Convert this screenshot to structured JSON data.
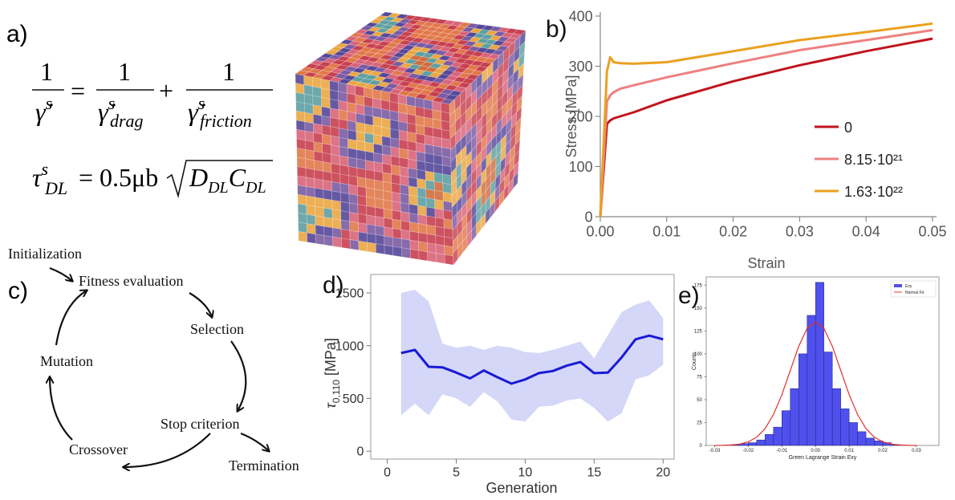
{
  "panels": {
    "a": "a)",
    "c": "c)"
  },
  "equation_1": {
    "fractions": [
      {
        "num": "1",
        "den": "γ̇",
        "sup": "s"
      },
      {
        "num": "1",
        "den": "γ̇",
        "sup": "s",
        "sub": "drag"
      },
      {
        "num": "1",
        "den": "γ̇",
        "sup": "s",
        "sub": "friction"
      }
    ],
    "operators": [
      "=",
      "+"
    ]
  },
  "equation_2": {
    "symbol": "τ",
    "sup": "s",
    "sub": "DL",
    "rhs": "= 0.5μb",
    "radicand": [
      [
        "D",
        "DL"
      ],
      [
        "C",
        "DL"
      ]
    ]
  },
  "cycle": {
    "steps": [
      "Initialization",
      "Fitness evaluation",
      "Selection",
      "Stop criterion",
      "Termination",
      "Crossover",
      "Mutation"
    ]
  },
  "chart_data": [
    {
      "type": "line",
      "label": "b)",
      "xlabel": "Strain",
      "ylabel": "Stress [MPa]",
      "x": [
        0,
        0.001,
        0.0015,
        0.002,
        0.003,
        0.005,
        0.01,
        0.02,
        0.03,
        0.04,
        0.05
      ],
      "series": [
        {
          "name": "0",
          "color": "#c0141e",
          "values": [
            0,
            185,
            192,
            196,
            200,
            208,
            232,
            270,
            302,
            330,
            355
          ]
        },
        {
          "name": "8.15·10²¹",
          "color": "#ee8080",
          "values": [
            0,
            230,
            242,
            248,
            255,
            262,
            278,
            306,
            332,
            352,
            372
          ]
        },
        {
          "name": "1.63·10²²",
          "color": "#eba020",
          "values": [
            0,
            290,
            318,
            308,
            306,
            305,
            308,
            330,
            352,
            368,
            385
          ]
        }
      ],
      "xlim": [
        0,
        0.05
      ],
      "ylim": [
        0,
        400
      ],
      "xticks": [
        {
          "value": 0,
          "label": "0.00"
        },
        0.01,
        0.02,
        0.03,
        0.04,
        0.05
      ],
      "yticks": [
        0,
        100,
        200,
        300,
        400
      ],
      "legend": "right"
    },
    {
      "type": "line",
      "label": "d)",
      "xlabel": "Generation",
      "ylabel": [
        "τ",
        "0,110",
        " [MPa]"
      ],
      "x": [
        1,
        2,
        3,
        4,
        5,
        6,
        7,
        8,
        9,
        10,
        11,
        12,
        13,
        14,
        15,
        16,
        17,
        18,
        19,
        20
      ],
      "series": [
        {
          "color": "#1a1ad6",
          "band_color": "#cdd0f6",
          "values": [
            930,
            960,
            800,
            795,
            745,
            690,
            765,
            700,
            640,
            680,
            740,
            760,
            810,
            845,
            740,
            745,
            890,
            1060,
            1095,
            1060
          ],
          "lower": [
            340,
            450,
            340,
            540,
            500,
            420,
            560,
            470,
            300,
            280,
            420,
            430,
            480,
            500,
            410,
            280,
            360,
            680,
            720,
            820
          ],
          "upper": [
            1500,
            1530,
            1420,
            1020,
            980,
            1000,
            960,
            1000,
            980,
            940,
            930,
            960,
            1000,
            1040,
            880,
            1100,
            1320,
            1390,
            1430,
            1260
          ]
        }
      ],
      "xlim": [
        -1.2,
        20.8
      ],
      "ylim": [
        -75,
        1675
      ],
      "xticks": [
        0,
        5,
        10,
        15,
        20
      ],
      "yticks": [
        0,
        500,
        1000,
        1500
      ]
    },
    {
      "type": "histogram",
      "label": "e)",
      "xlabel": "Green Lagrange Strain Exy",
      "ylabel": "Counts",
      "name": "Exy",
      "color": "#5050ee",
      "bins": [
        -0.025,
        -0.0225,
        -0.02,
        -0.0175,
        -0.015,
        -0.0125,
        -0.01,
        -0.0075,
        -0.005,
        -0.0025,
        0,
        0.0025,
        0.005,
        0.0075,
        0.01,
        0.0125,
        0.015,
        0.0175,
        0.02,
        0.0225,
        0.025
      ],
      "counts": [
        1,
        2,
        3,
        6,
        12,
        20,
        38,
        62,
        100,
        142,
        178,
        102,
        62,
        40,
        25,
        15,
        8,
        5,
        3,
        1
      ],
      "fit": {
        "name": "Normal Fit",
        "color": "#e03030",
        "x": [
          -0.03,
          -0.0275,
          -0.025,
          -0.0225,
          -0.02,
          -0.0175,
          -0.015,
          -0.0125,
          -0.01,
          -0.0075,
          -0.005,
          -0.0025,
          0,
          0.0025,
          0.005,
          0.0075,
          0.01,
          0.0125,
          0.015,
          0.0175,
          0.02,
          0.0225,
          0.025,
          0.0275,
          0.03
        ],
        "values": [
          0,
          0.1,
          0.5,
          1.5,
          3.9,
          8.9,
          18.3,
          33.7,
          55.5,
          81.9,
          108.1,
          127.7,
          135,
          127.7,
          108.1,
          81.9,
          55.5,
          33.7,
          18.3,
          8.9,
          3.9,
          1.5,
          0.5,
          0.1,
          0
        ]
      },
      "xlim": [
        -0.0325,
        0.0367
      ],
      "ylim": [
        0,
        184
      ],
      "xticks": [
        -0.03,
        -0.02,
        -0.01,
        {
          "value": 0,
          "label": "0.00"
        },
        0.01,
        0.02,
        0.03
      ],
      "yticks": [
        0,
        25,
        50,
        75,
        100,
        125,
        150,
        175
      ],
      "legend": "upper right"
    }
  ]
}
